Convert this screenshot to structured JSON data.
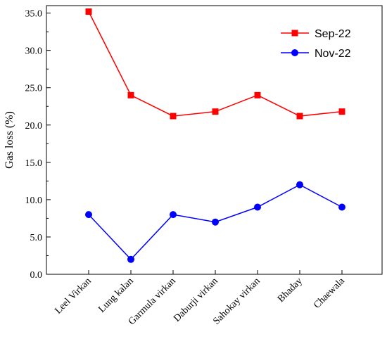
{
  "chart_data": {
    "type": "line",
    "title": "",
    "xlabel": "",
    "ylabel": "Gas loss (%)",
    "ylim": [
      0,
      36
    ],
    "yticks": [
      "0.0",
      "5.0",
      "10.0",
      "15.0",
      "20.0",
      "25.0",
      "30.0",
      "35.0"
    ],
    "grid": false,
    "legend_position": "top-right",
    "categories": [
      "Leel Virkan",
      "Lung kalan",
      "Garmula virkan",
      "Daburji virkan",
      "Sahokay virkan",
      "Bhaday",
      "Chaewala"
    ],
    "series": [
      {
        "name": "Sep-22",
        "color": "#ff0000",
        "marker": "square",
        "values": [
          35.2,
          24.0,
          21.2,
          21.8,
          24.0,
          21.2,
          21.8
        ]
      },
      {
        "name": "Nov-22",
        "color": "#0000ff",
        "marker": "circle",
        "values": [
          8.0,
          2.0,
          8.0,
          7.0,
          9.0,
          12.0,
          9.0
        ]
      }
    ]
  }
}
